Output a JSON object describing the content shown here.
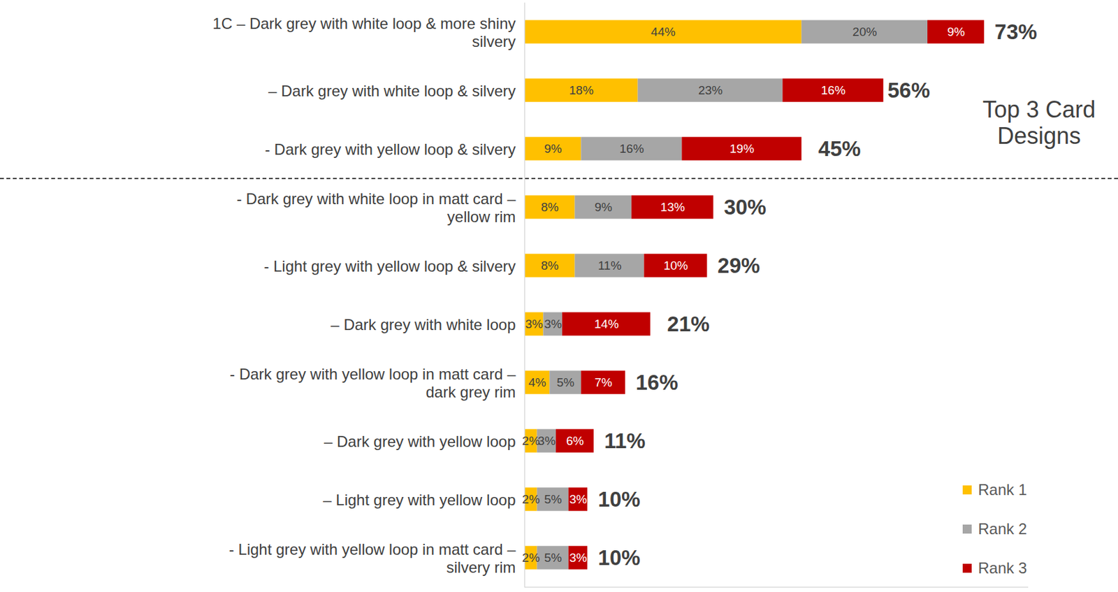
{
  "chart_data": {
    "type": "bar",
    "orientation": "horizontal",
    "stacked": true,
    "data_labels": true,
    "tick_labels": false,
    "legend": "bottom-right",
    "annotations": [
      "Top 3  Card Designs"
    ],
    "categories": [
      "1C – Dark grey with white loop & more shiny silvery",
      "– Dark grey with white loop & silvery",
      "- Dark grey with yellow loop & silvery",
      "- Dark grey with white loop in matt card – yellow rim",
      "- Light grey with yellow loop & silvery",
      "– Dark grey with white loop",
      "- Dark grey with yellow loop in matt card – dark grey rim",
      "– Dark grey with yellow loop",
      "– Light grey with yellow loop",
      "- Light grey with yellow loop in matt card – silvery rim"
    ],
    "series": [
      {
        "name": "Rank 1",
        "color": "#FFC000",
        "values": [
          44,
          18,
          9,
          8,
          8,
          3,
          4,
          2,
          2,
          2
        ],
        "value_labels": [
          "44%",
          "18%",
          "9%",
          "8%",
          "8%",
          "3%",
          "4%",
          "2%",
          "2%",
          "2%"
        ]
      },
      {
        "name": "Rank 2",
        "color": "#A6A6A6",
        "values": [
          20,
          23,
          16,
          9,
          11,
          3,
          5,
          3,
          5,
          5
        ],
        "value_labels": [
          "20%",
          "23%",
          "16%",
          "9%",
          "11%",
          "3%",
          "5%",
          "3%",
          "5%",
          "5%"
        ]
      },
      {
        "name": "Rank 3",
        "color": "#C00000",
        "values": [
          9,
          16,
          19,
          13,
          10,
          14,
          7,
          6,
          3,
          3
        ],
        "value_labels": [
          "9%",
          "16%",
          "19%",
          "13%",
          "10%",
          "14%",
          "7%",
          "6%",
          "3%",
          "3%"
        ]
      }
    ],
    "totals": [
      73,
      56,
      45,
      30,
      29,
      21,
      16,
      11,
      10,
      10
    ],
    "total_labels": [
      "73%",
      "56%",
      "45%",
      "30%",
      "29%",
      "21%",
      "16%",
      "11%",
      "10%",
      "10%"
    ],
    "xlim": [
      0,
      80
    ]
  }
}
